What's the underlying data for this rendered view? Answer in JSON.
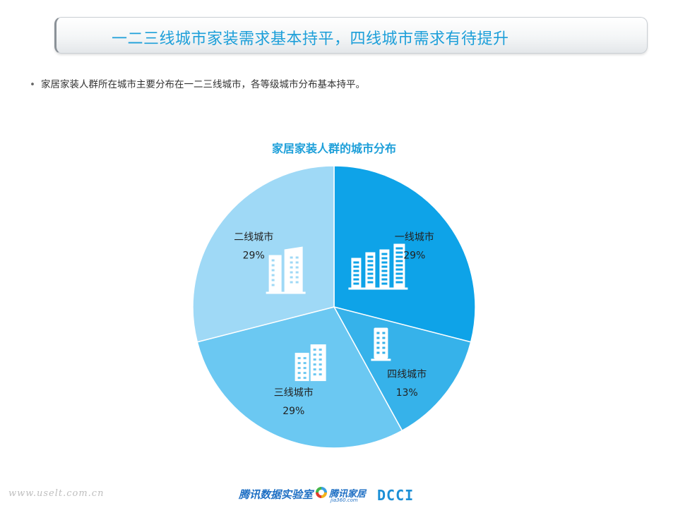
{
  "header": {
    "title": "一二三线城市家装需求基本持平，四线城市需求有待提升"
  },
  "content": {
    "bullet_symbol": "•",
    "bullet_text": "家居家装人群所在城市主要分布在一二三线城市，各等级城市分布基本持平。"
  },
  "chart_data": {
    "type": "pie",
    "title": "家居家装人群的城市分布",
    "slices": [
      {
        "label": "一线城市",
        "value": 29,
        "value_label": "29%",
        "color": "#0ea3e8",
        "icon": "tall-buildings-icon"
      },
      {
        "label": "四线城市",
        "value": 13,
        "value_label": "13%",
        "color": "#36b2ea",
        "icon": "single-building-icon"
      },
      {
        "label": "三线城市",
        "value": 29,
        "value_label": "29%",
        "color": "#6bc8f2",
        "icon": "mid-buildings-icon"
      },
      {
        "label": "二线城市",
        "value": 29,
        "value_label": "29%",
        "color": "#9fd9f6",
        "icon": "twin-towers-icon"
      }
    ],
    "start": "12 o'clock",
    "direction": "clockwise",
    "legend": "none"
  },
  "footer": {
    "watermark": "www.uselt.com.cn",
    "lab_name": "腾讯数据实验室",
    "jiaju_name": "腾讯家居",
    "jiaju_sub": "jia360.com",
    "dcci": "DCCI"
  },
  "colors": {
    "accent": "#1d9fd9",
    "brand_blue": "#1e6fc4"
  }
}
